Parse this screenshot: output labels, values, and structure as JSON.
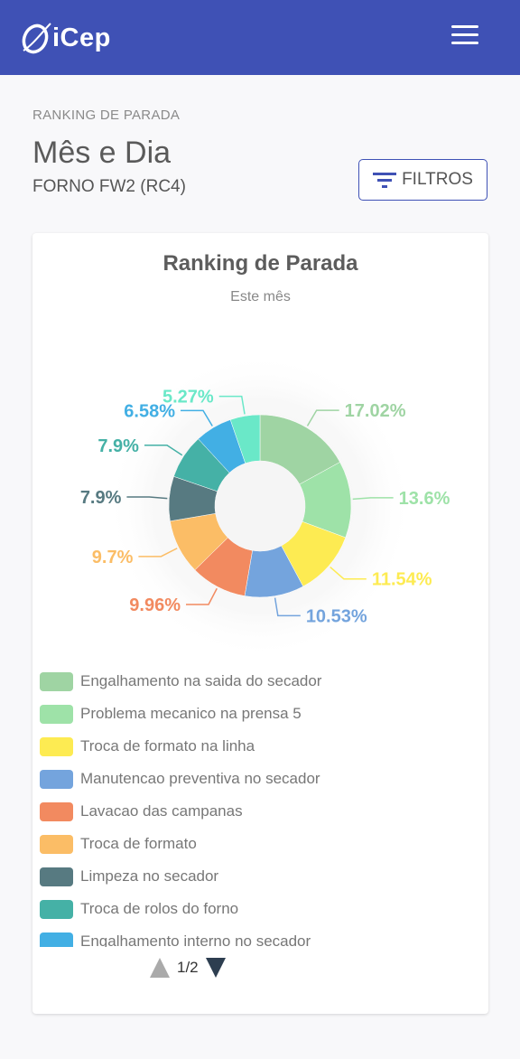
{
  "header": {
    "logo_text": "iCep",
    "logo_icon": "icep-logo-icon",
    "menu_icon": "hamburger-menu-icon",
    "background": "#3f51b5"
  },
  "page": {
    "section_label": "RANKING DE PARADA",
    "title": "Mês e Dia",
    "subtitle": "FORNO FW2 (RC4)",
    "filter_label": "FILTROS",
    "filter_icon": "filter-icon"
  },
  "card": {
    "title": "Ranking de Parada",
    "subtitle": "Este mês"
  },
  "chart_data": {
    "type": "pie",
    "variant": "donut",
    "title": "Ranking de Parada",
    "subtitle": "Este mês",
    "legend_position": "bottom",
    "slices": [
      {
        "label": "Engalhamento na saida do secador",
        "value": 17.02,
        "display": "17.02%",
        "color": "#9fd4a3"
      },
      {
        "label": "Problema mecanico na prensa 5",
        "value": 13.6,
        "display": "13.6%",
        "color": "#9ee2a8"
      },
      {
        "label": "Troca de formato na linha",
        "value": 11.54,
        "display": "11.54%",
        "color": "#fdeb52"
      },
      {
        "label": "Manutencao preventiva no secador",
        "value": 10.53,
        "display": "10.53%",
        "color": "#74a4dd"
      },
      {
        "label": "Lavacao das campanas",
        "value": 9.96,
        "display": "9.96%",
        "color": "#f28a60"
      },
      {
        "label": "Troca de formato",
        "value": 9.7,
        "display": "9.7%",
        "color": "#fbbd66"
      },
      {
        "label": "Limpeza no secador",
        "value": 7.9,
        "display": "7.9%",
        "color": "#577a81"
      },
      {
        "label": "Troca de rolos do forno",
        "value": 7.9,
        "display": "7.9%",
        "color": "#45b1a6"
      },
      {
        "label": "Engalhamento interno no secador",
        "value": 6.58,
        "display": "6.58%",
        "color": "#42afe4"
      },
      {
        "value": 5.27,
        "display": "5.27%",
        "color": "#6ae8c8"
      }
    ]
  },
  "pager": {
    "text": "1/2",
    "up_icon": "triangle-up-icon",
    "down_icon": "triangle-down-icon"
  }
}
